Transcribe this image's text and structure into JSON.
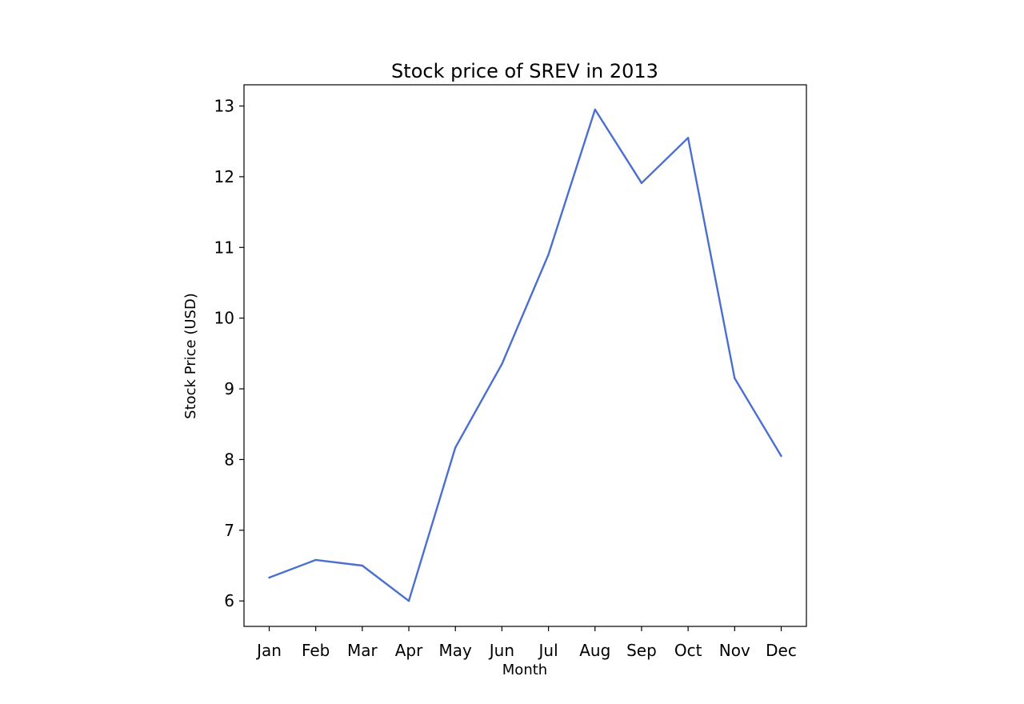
{
  "chart_data": {
    "type": "line",
    "title": "Stock price of SREV in 2013",
    "xlabel": "Month",
    "ylabel": "Stock Price (USD)",
    "categories": [
      "Jan",
      "Feb",
      "Mar",
      "Apr",
      "May",
      "Jun",
      "Jul",
      "Aug",
      "Sep",
      "Oct",
      "Nov",
      "Dec"
    ],
    "series": [
      {
        "values": [
          6.33,
          6.58,
          6.5,
          6.0,
          8.17,
          9.35,
          10.9,
          12.95,
          11.91,
          12.55,
          9.15,
          8.05
        ],
        "color": "#4a6fcf"
      }
    ],
    "yticks": [
      6,
      7,
      8,
      9,
      10,
      11,
      12,
      13
    ],
    "ylim": [
      5.64,
      13.3
    ],
    "grid": false,
    "legend": "none"
  }
}
